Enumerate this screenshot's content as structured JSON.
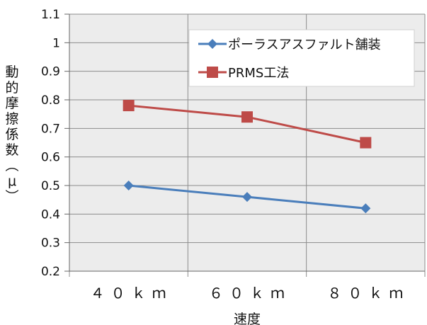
{
  "chart_data": {
    "type": "line",
    "categories": [
      "４０ｋｍ",
      "６０ｋｍ",
      "８０ｋｍ"
    ],
    "series": [
      {
        "name": "ポーラスアスファルト舗装",
        "values": [
          0.5,
          0.46,
          0.42
        ],
        "color": "#4a7ebb",
        "marker": "diamond"
      },
      {
        "name": "PRMS工法",
        "values": [
          0.78,
          0.74,
          0.65
        ],
        "color": "#be4b48",
        "marker": "square"
      }
    ],
    "xlabel": "速度",
    "ylabel": "動的摩擦係数（μ）",
    "ylim": [
      0.2,
      1.1
    ],
    "yticks": [
      "0.2",
      "0.3",
      "0.4",
      "0.5",
      "0.6",
      "0.7",
      "0.8",
      "0.9",
      "1",
      "1.1"
    ],
    "grid": true,
    "legend_position": "top-right",
    "plot_background": "#ececec"
  }
}
